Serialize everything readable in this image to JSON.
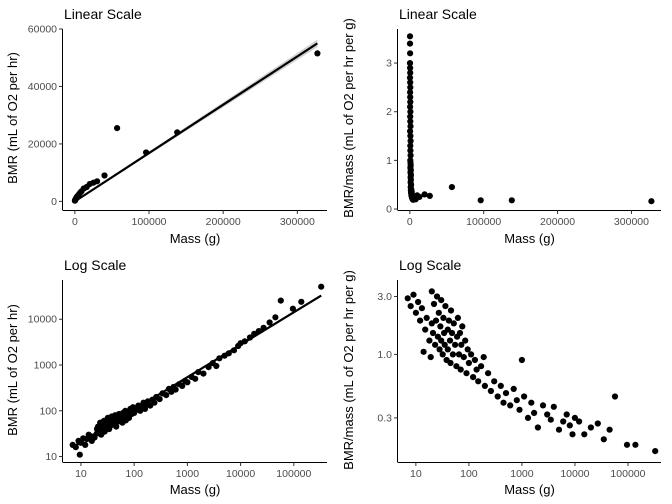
{
  "chart_data": [
    {
      "type": "scatter",
      "title": "Linear Scale",
      "xlabel": "Mass (g)",
      "ylabel": "BMR (mL of O2 per hr)",
      "x_scale": "linear",
      "y_scale": "linear",
      "xlim": [
        -16000,
        340000
      ],
      "ylim": [
        -3000,
        60000
      ],
      "x_ticks": [
        0,
        100000,
        200000,
        300000
      ],
      "x_tick_labels": [
        "0",
        "100000",
        "200000",
        "300000"
      ],
      "y_ticks": [
        0,
        20000,
        40000,
        60000
      ],
      "y_tick_labels": [
        "0",
        "20000",
        "40000",
        "60000"
      ],
      "grid": false,
      "points": [
        [
          100,
          250
        ],
        [
          300,
          400
        ],
        [
          600,
          500
        ],
        [
          1000,
          700
        ],
        [
          1500,
          1000
        ],
        [
          2500,
          1500
        ],
        [
          3500,
          1800
        ],
        [
          5000,
          2300
        ],
        [
          7000,
          3000
        ],
        [
          9000,
          3500
        ],
        [
          12000,
          4500
        ],
        [
          16000,
          5000
        ],
        [
          20000,
          6000
        ],
        [
          25000,
          6500
        ],
        [
          30000,
          7000
        ],
        [
          40000,
          9000
        ],
        [
          57000,
          25500
        ],
        [
          96000,
          17000
        ],
        [
          138000,
          24000
        ],
        [
          327000,
          51500
        ]
      ],
      "fit": {
        "x": [
          0,
          327000
        ],
        "y": [
          0,
          55000
        ],
        "ci_halfwidth": [
          200,
          1300
        ]
      }
    },
    {
      "type": "scatter",
      "title": "Linear Scale",
      "xlabel": "Mass (g)",
      "ylabel": "BMR/mass (mL of O2 per hr per g)",
      "x_scale": "linear",
      "y_scale": "linear",
      "xlim": [
        -16000,
        340000
      ],
      "ylim": [
        -0.02,
        3.7
      ],
      "x_ticks": [
        0,
        100000,
        200000,
        300000
      ],
      "x_tick_labels": [
        "0",
        "100000",
        "200000",
        "300000"
      ],
      "y_ticks": [
        0,
        1,
        2,
        3
      ],
      "y_tick_labels": [
        "0",
        "1",
        "2",
        "3"
      ],
      "grid": false,
      "points": [
        [
          300,
          3.55
        ],
        [
          250,
          3.4
        ],
        [
          400,
          3.2
        ],
        [
          200,
          3.0
        ],
        [
          350,
          2.9
        ],
        [
          500,
          2.8
        ],
        [
          300,
          2.7
        ],
        [
          450,
          2.6
        ],
        [
          600,
          2.5
        ],
        [
          400,
          2.4
        ],
        [
          550,
          2.3
        ],
        [
          700,
          2.2
        ],
        [
          350,
          2.1
        ],
        [
          800,
          2.0
        ],
        [
          500,
          1.9
        ],
        [
          650,
          1.8
        ],
        [
          900,
          1.7
        ],
        [
          400,
          1.6
        ],
        [
          750,
          1.5
        ],
        [
          1000,
          1.4
        ],
        [
          600,
          1.3
        ],
        [
          850,
          1.2
        ],
        [
          1100,
          1.1
        ],
        [
          700,
          1.0
        ],
        [
          950,
          0.95
        ],
        [
          1200,
          0.9
        ],
        [
          800,
          0.85
        ],
        [
          1300,
          0.8
        ],
        [
          900,
          0.75
        ],
        [
          1400,
          0.7
        ],
        [
          1000,
          0.65
        ],
        [
          1500,
          0.6
        ],
        [
          1100,
          0.55
        ],
        [
          1700,
          0.5
        ],
        [
          1200,
          0.45
        ],
        [
          2000,
          0.4
        ],
        [
          1500,
          0.38
        ],
        [
          2500,
          0.35
        ],
        [
          1800,
          0.33
        ],
        [
          3000,
          0.3
        ],
        [
          2200,
          0.28
        ],
        [
          4000,
          0.26
        ],
        [
          2800,
          0.24
        ],
        [
          5000,
          0.22
        ],
        [
          3500,
          0.21
        ],
        [
          6000,
          0.2
        ],
        [
          8000,
          0.2
        ],
        [
          4500,
          0.19
        ],
        [
          10000,
          0.28
        ],
        [
          13000,
          0.25
        ],
        [
          20000,
          0.3
        ],
        [
          27000,
          0.27
        ],
        [
          57000,
          0.45
        ],
        [
          96000,
          0.18
        ],
        [
          138000,
          0.18
        ],
        [
          327000,
          0.16
        ]
      ]
    },
    {
      "type": "scatter",
      "title": "Log Scale",
      "xlabel": "Mass (g)",
      "ylabel": "BMR (mL of O2 per hr)",
      "x_scale": "log10",
      "y_scale": "log10",
      "xlim": [
        4.6,
        420000
      ],
      "ylim": [
        7.6,
        72000
      ],
      "x_ticks": [
        10,
        100,
        1000,
        10000,
        100000
      ],
      "x_tick_labels": [
        "10",
        "100",
        "1000",
        "10000",
        "100000"
      ],
      "y_ticks": [
        10,
        100,
        1000,
        10000
      ],
      "y_tick_labels": [
        "10",
        "100",
        "1000",
        "10000"
      ],
      "grid": false,
      "points": [
        [
          7,
          18
        ],
        [
          8,
          16
        ],
        [
          9,
          22
        ],
        [
          9.5,
          11
        ],
        [
          10,
          20
        ],
        [
          11,
          25
        ],
        [
          12,
          18
        ],
        [
          13,
          24
        ],
        [
          14,
          30
        ],
        [
          15,
          28
        ],
        [
          16,
          22
        ],
        [
          18,
          26
        ],
        [
          20,
          40
        ],
        [
          20,
          32
        ],
        [
          21,
          45
        ],
        [
          22,
          38
        ],
        [
          23,
          55
        ],
        [
          24,
          30
        ],
        [
          25,
          48
        ],
        [
          26,
          42
        ],
        [
          27,
          60
        ],
        [
          28,
          35
        ],
        [
          29,
          50
        ],
        [
          30,
          44
        ],
        [
          32,
          70
        ],
        [
          33,
          52
        ],
        [
          34,
          40
        ],
        [
          35,
          60
        ],
        [
          36,
          48
        ],
        [
          38,
          75
        ],
        [
          40,
          55
        ],
        [
          40,
          65
        ],
        [
          42,
          50
        ],
        [
          44,
          80
        ],
        [
          45,
          62
        ],
        [
          46,
          45
        ],
        [
          48,
          70
        ],
        [
          50,
          58
        ],
        [
          52,
          85
        ],
        [
          55,
          65
        ],
        [
          58,
          75
        ],
        [
          60,
          55
        ],
        [
          62,
          90
        ],
        [
          65,
          72
        ],
        [
          68,
          100
        ],
        [
          70,
          62
        ],
        [
          72,
          82
        ],
        [
          75,
          95
        ],
        [
          80,
          70
        ],
        [
          85,
          110
        ],
        [
          90,
          85
        ],
        [
          95,
          120
        ],
        [
          100,
          90
        ],
        [
          110,
          105
        ],
        [
          120,
          130
        ],
        [
          130,
          100
        ],
        [
          140,
          120
        ],
        [
          150,
          150
        ],
        [
          160,
          110
        ],
        [
          170,
          140
        ],
        [
          180,
          160
        ],
        [
          200,
          130
        ],
        [
          220,
          175
        ],
        [
          240,
          150
        ],
        [
          260,
          200
        ],
        [
          300,
          180
        ],
        [
          340,
          240
        ],
        [
          400,
          220
        ],
        [
          450,
          300
        ],
        [
          500,
          260
        ],
        [
          550,
          330
        ],
        [
          600,
          290
        ],
        [
          700,
          380
        ],
        [
          800,
          350
        ],
        [
          900,
          450
        ],
        [
          1000,
          420
        ],
        [
          1200,
          550
        ],
        [
          1400,
          500
        ],
        [
          1600,
          700
        ],
        [
          2000,
          650
        ],
        [
          2500,
          900
        ],
        [
          3000,
          1100
        ],
        [
          3500,
          950
        ],
        [
          4000,
          1400
        ],
        [
          5000,
          1600
        ],
        [
          6000,
          1800
        ],
        [
          7500,
          2100
        ],
        [
          9000,
          2600
        ],
        [
          10000,
          3000
        ],
        [
          12000,
          3300
        ],
        [
          15000,
          4000
        ],
        [
          18000,
          4800
        ],
        [
          22000,
          5500
        ],
        [
          27000,
          6500
        ],
        [
          35000,
          8500
        ],
        [
          45000,
          11000
        ],
        [
          57000,
          25500
        ],
        [
          96000,
          17000
        ],
        [
          138000,
          24000
        ],
        [
          327000,
          51500
        ]
      ],
      "fit": {
        "x": [
          7,
          327000
        ],
        "y": [
          16,
          33000
        ]
      }
    },
    {
      "type": "scatter",
      "title": "Log Scale",
      "xlabel": "Mass (g)",
      "ylabel": "BMR/mass (mL of O2 per hr per g)",
      "x_scale": "log10",
      "y_scale": "log10",
      "xlim": [
        4.6,
        420000
      ],
      "ylim": [
        0.13,
        4.1
      ],
      "x_ticks": [
        10,
        100,
        1000,
        10000,
        100000
      ],
      "x_tick_labels": [
        "10",
        "100",
        "1000",
        "10000",
        "100000"
      ],
      "y_ticks": [
        0.3,
        1,
        3
      ],
      "y_tick_labels": [
        "0.3",
        "1.0",
        "3.0"
      ],
      "grid": false,
      "points": [
        [
          7,
          2.9
        ],
        [
          8,
          2.5
        ],
        [
          9,
          3.1
        ],
        [
          10,
          2.2
        ],
        [
          11,
          2.7
        ],
        [
          12,
          1.9
        ],
        [
          13,
          2.4
        ],
        [
          14,
          1.05
        ],
        [
          15,
          1.6
        ],
        [
          16,
          2.0
        ],
        [
          18,
          1.3
        ],
        [
          19,
          0.95
        ],
        [
          20,
          1.8
        ],
        [
          20,
          3.3
        ],
        [
          21,
          1.5
        ],
        [
          22,
          2.6
        ],
        [
          23,
          1.2
        ],
        [
          24,
          1.9
        ],
        [
          25,
          3.0
        ],
        [
          26,
          1.4
        ],
        [
          27,
          2.2
        ],
        [
          28,
          1.1
        ],
        [
          29,
          1.7
        ],
        [
          30,
          2.8
        ],
        [
          30,
          1.3
        ],
        [
          32,
          1.0
        ],
        [
          33,
          2.0
        ],
        [
          34,
          1.5
        ],
        [
          35,
          1.2
        ],
        [
          36,
          2.5
        ],
        [
          38,
          0.9
        ],
        [
          40,
          1.6
        ],
        [
          40,
          1.1
        ],
        [
          42,
          1.9
        ],
        [
          44,
          1.3
        ],
        [
          45,
          0.85
        ],
        [
          46,
          2.3
        ],
        [
          48,
          1.5
        ],
        [
          50,
          1.0
        ],
        [
          52,
          1.8
        ],
        [
          55,
          1.2
        ],
        [
          58,
          0.8
        ],
        [
          60,
          1.4
        ],
        [
          62,
          2.0
        ],
        [
          65,
          1.0
        ],
        [
          68,
          1.5
        ],
        [
          70,
          0.75
        ],
        [
          72,
          1.2
        ],
        [
          75,
          1.7
        ],
        [
          80,
          0.95
        ],
        [
          85,
          1.3
        ],
        [
          90,
          0.7
        ],
        [
          95,
          1.1
        ],
        [
          100,
          0.85
        ],
        [
          110,
          1.0
        ],
        [
          120,
          0.65
        ],
        [
          130,
          0.9
        ],
        [
          140,
          0.75
        ],
        [
          150,
          0.6
        ],
        [
          170,
          0.8
        ],
        [
          190,
          0.95
        ],
        [
          200,
          0.55
        ],
        [
          230,
          0.7
        ],
        [
          260,
          0.5
        ],
        [
          300,
          0.6
        ],
        [
          350,
          0.45
        ],
        [
          400,
          0.55
        ],
        [
          450,
          0.4
        ],
        [
          500,
          0.48
        ],
        [
          600,
          0.38
        ],
        [
          700,
          0.52
        ],
        [
          800,
          0.42
        ],
        [
          900,
          0.35
        ],
        [
          1000,
          0.9
        ],
        [
          1100,
          0.45
        ],
        [
          1300,
          0.3
        ],
        [
          1500,
          0.4
        ],
        [
          1700,
          0.33
        ],
        [
          2000,
          0.25
        ],
        [
          2500,
          0.38
        ],
        [
          3000,
          0.32
        ],
        [
          3500,
          0.29
        ],
        [
          4000,
          0.37
        ],
        [
          5000,
          0.24
        ],
        [
          6000,
          0.28
        ],
        [
          7000,
          0.32
        ],
        [
          8000,
          0.26
        ],
        [
          9000,
          0.22
        ],
        [
          10000,
          0.3
        ],
        [
          12000,
          0.28
        ],
        [
          15000,
          0.22
        ],
        [
          20000,
          0.25
        ],
        [
          27000,
          0.27
        ],
        [
          35000,
          0.2
        ],
        [
          45000,
          0.24
        ],
        [
          57000,
          0.45
        ],
        [
          96000,
          0.18
        ],
        [
          138000,
          0.18
        ],
        [
          327000,
          0.16
        ]
      ]
    }
  ]
}
